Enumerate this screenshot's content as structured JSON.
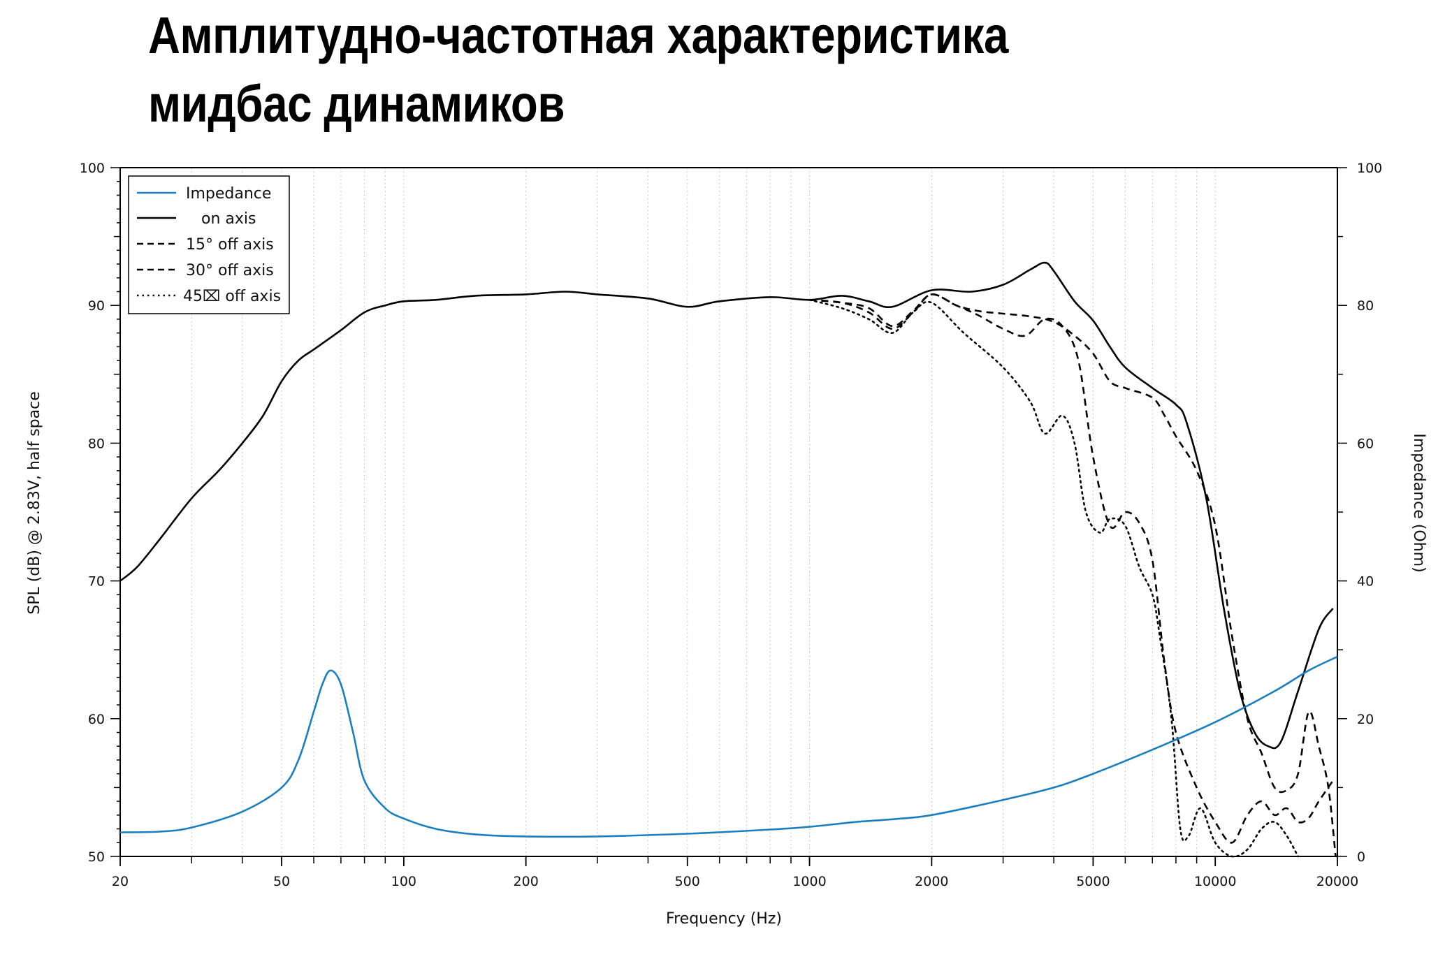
{
  "title_lines": [
    "Амплитудно-частотная характеристика",
    "мидбас динамиков"
  ],
  "chart_data": {
    "type": "line",
    "title": "Амплитудно-частотная характеристика мидбас динамиков",
    "xlabel": "Frequency (Hz)",
    "ylabel": "SPL (dB) @ 2.83V, half space",
    "y2label": "Impedance (Ohm)",
    "xscale": "log",
    "xlim": [
      20,
      20000
    ],
    "ylim": [
      50,
      100
    ],
    "y2lim": [
      0,
      100
    ],
    "x_ticks": [
      20,
      50,
      100,
      200,
      500,
      1000,
      2000,
      5000,
      10000,
      20000
    ],
    "x_tick_labels": [
      "20",
      "50",
      "100",
      "200",
      "500",
      "1000",
      "2000",
      "5000",
      "10000",
      "20000"
    ],
    "y_ticks": [
      50,
      60,
      70,
      80,
      90,
      100
    ],
    "y_tick_labels": [
      "50",
      "60",
      "70",
      "80",
      "90",
      "100"
    ],
    "y2_ticks": [
      0,
      20,
      40,
      60,
      80,
      100
    ],
    "y2_tick_labels": [
      "0",
      "20",
      "40",
      "60",
      "80",
      "100"
    ],
    "grid": "vertical-dotted",
    "legend_position": "top-left",
    "legend": [
      "Impedance",
      "on axis",
      "15° off axis",
      "30° off axis",
      "45⌧ off axis"
    ],
    "series": [
      {
        "name": "Impedance",
        "axis": "right",
        "color": "#1a7fc1",
        "style": "solid",
        "points": [
          [
            20,
            3.5
          ],
          [
            25,
            3.6
          ],
          [
            30,
            4.2
          ],
          [
            40,
            6.5
          ],
          [
            50,
            10
          ],
          [
            55,
            14
          ],
          [
            60,
            21
          ],
          [
            63,
            25
          ],
          [
            66,
            27
          ],
          [
            70,
            25
          ],
          [
            75,
            18
          ],
          [
            80,
            11
          ],
          [
            90,
            7
          ],
          [
            100,
            5.5
          ],
          [
            120,
            4
          ],
          [
            150,
            3.2
          ],
          [
            200,
            2.9
          ],
          [
            300,
            2.9
          ],
          [
            500,
            3.3
          ],
          [
            800,
            3.9
          ],
          [
            1000,
            4.3
          ],
          [
            1300,
            5
          ],
          [
            1600,
            5.4
          ],
          [
            2000,
            6
          ],
          [
            3000,
            8.2
          ],
          [
            4000,
            10
          ],
          [
            5000,
            12
          ],
          [
            7000,
            15.5
          ],
          [
            10000,
            19.5
          ],
          [
            14000,
            24
          ],
          [
            17000,
            27
          ],
          [
            20000,
            29
          ]
        ]
      },
      {
        "name": "on axis",
        "axis": "left",
        "color": "#000000",
        "style": "solid",
        "points": [
          [
            20,
            70
          ],
          [
            22,
            71
          ],
          [
            25,
            73
          ],
          [
            30,
            76
          ],
          [
            35,
            78
          ],
          [
            40,
            80
          ],
          [
            45,
            82
          ],
          [
            50,
            84.5
          ],
          [
            55,
            86
          ],
          [
            60,
            86.8
          ],
          [
            70,
            88.2
          ],
          [
            80,
            89.5
          ],
          [
            90,
            90
          ],
          [
            100,
            90.3
          ],
          [
            120,
            90.4
          ],
          [
            150,
            90.7
          ],
          [
            200,
            90.8
          ],
          [
            250,
            91
          ],
          [
            300,
            90.8
          ],
          [
            400,
            90.5
          ],
          [
            500,
            89.9
          ],
          [
            600,
            90.3
          ],
          [
            800,
            90.6
          ],
          [
            1000,
            90.4
          ],
          [
            1200,
            90.7
          ],
          [
            1400,
            90.3
          ],
          [
            1600,
            89.9
          ],
          [
            2000,
            91.1
          ],
          [
            2500,
            91
          ],
          [
            3000,
            91.5
          ],
          [
            3500,
            92.6
          ],
          [
            3800,
            93.1
          ],
          [
            4000,
            92.5
          ],
          [
            4500,
            90.3
          ],
          [
            5000,
            88.9
          ],
          [
            5500,
            87
          ],
          [
            6000,
            85.5
          ],
          [
            7000,
            84
          ],
          [
            8000,
            82.8
          ],
          [
            8500,
            81.5
          ],
          [
            9500,
            76
          ],
          [
            10500,
            68
          ],
          [
            11500,
            62
          ],
          [
            12500,
            59
          ],
          [
            13500,
            58
          ],
          [
            14500,
            58.3
          ],
          [
            16000,
            62
          ],
          [
            18000,
            66.5
          ],
          [
            19500,
            68
          ]
        ]
      },
      {
        "name": "15° off axis",
        "axis": "left",
        "color": "#000000",
        "style": "dash",
        "points": [
          [
            1000,
            90.4
          ],
          [
            1200,
            90.2
          ],
          [
            1400,
            89.5
          ],
          [
            1600,
            88.3
          ],
          [
            1800,
            89.5
          ],
          [
            2000,
            90.8
          ],
          [
            2300,
            90
          ],
          [
            2600,
            89.6
          ],
          [
            3000,
            89.4
          ],
          [
            3500,
            89.2
          ],
          [
            4000,
            88.8
          ],
          [
            4500,
            87.8
          ],
          [
            5000,
            86.5
          ],
          [
            5500,
            84.5
          ],
          [
            6000,
            84
          ],
          [
            7000,
            83.3
          ],
          [
            7500,
            82
          ],
          [
            8000,
            80.5
          ],
          [
            9000,
            78
          ],
          [
            10000,
            74
          ],
          [
            11000,
            66
          ],
          [
            12000,
            60
          ],
          [
            13000,
            57.5
          ],
          [
            14000,
            55
          ],
          [
            15000,
            54.8
          ],
          [
            16000,
            56
          ],
          [
            17000,
            60.5
          ],
          [
            18000,
            58
          ],
          [
            19000,
            55
          ],
          [
            19800,
            50
          ]
        ]
      },
      {
        "name": "30° off axis",
        "axis": "left",
        "color": "#000000",
        "style": "dash",
        "points": [
          [
            1000,
            90.4
          ],
          [
            1200,
            90.2
          ],
          [
            1400,
            89.8
          ],
          [
            1600,
            88.5
          ],
          [
            1800,
            89.6
          ],
          [
            2000,
            90.8
          ],
          [
            2300,
            90
          ],
          [
            2600,
            89.3
          ],
          [
            3000,
            88.3
          ],
          [
            3400,
            87.8
          ],
          [
            3800,
            89
          ],
          [
            4200,
            88.5
          ],
          [
            4600,
            86
          ],
          [
            5000,
            79
          ],
          [
            5500,
            74
          ],
          [
            6000,
            75
          ],
          [
            6500,
            74.2
          ],
          [
            7000,
            71.5
          ],
          [
            7500,
            64
          ],
          [
            8000,
            59
          ],
          [
            9000,
            55
          ],
          [
            10000,
            52.5
          ],
          [
            11000,
            51
          ],
          [
            12000,
            53
          ],
          [
            13000,
            54
          ],
          [
            14000,
            53
          ],
          [
            15000,
            53.5
          ],
          [
            16000,
            52.5
          ],
          [
            17000,
            52.8
          ],
          [
            18000,
            54
          ],
          [
            19500,
            55.5
          ]
        ]
      },
      {
        "name": "45⌧ off axis",
        "axis": "left",
        "color": "#000000",
        "style": "dot",
        "points": [
          [
            1000,
            90.4
          ],
          [
            1200,
            89.8
          ],
          [
            1400,
            89
          ],
          [
            1600,
            88
          ],
          [
            1800,
            89.5
          ],
          [
            2000,
            90.2
          ],
          [
            2400,
            88
          ],
          [
            3000,
            85.5
          ],
          [
            3500,
            83
          ],
          [
            3800,
            80.7
          ],
          [
            4200,
            82
          ],
          [
            4500,
            80
          ],
          [
            4800,
            75
          ],
          [
            5200,
            73.5
          ],
          [
            5500,
            74.5
          ],
          [
            6000,
            74
          ],
          [
            6500,
            71
          ],
          [
            7000,
            69
          ],
          [
            7300,
            66
          ],
          [
            7800,
            60
          ],
          [
            8200,
            52
          ],
          [
            8600,
            51.5
          ],
          [
            9200,
            53.5
          ],
          [
            10000,
            51
          ],
          [
            11000,
            50
          ],
          [
            12000,
            50.5
          ],
          [
            13000,
            52
          ],
          [
            14000,
            52.5
          ],
          [
            15000,
            51.5
          ],
          [
            16000,
            50
          ]
        ]
      }
    ]
  }
}
